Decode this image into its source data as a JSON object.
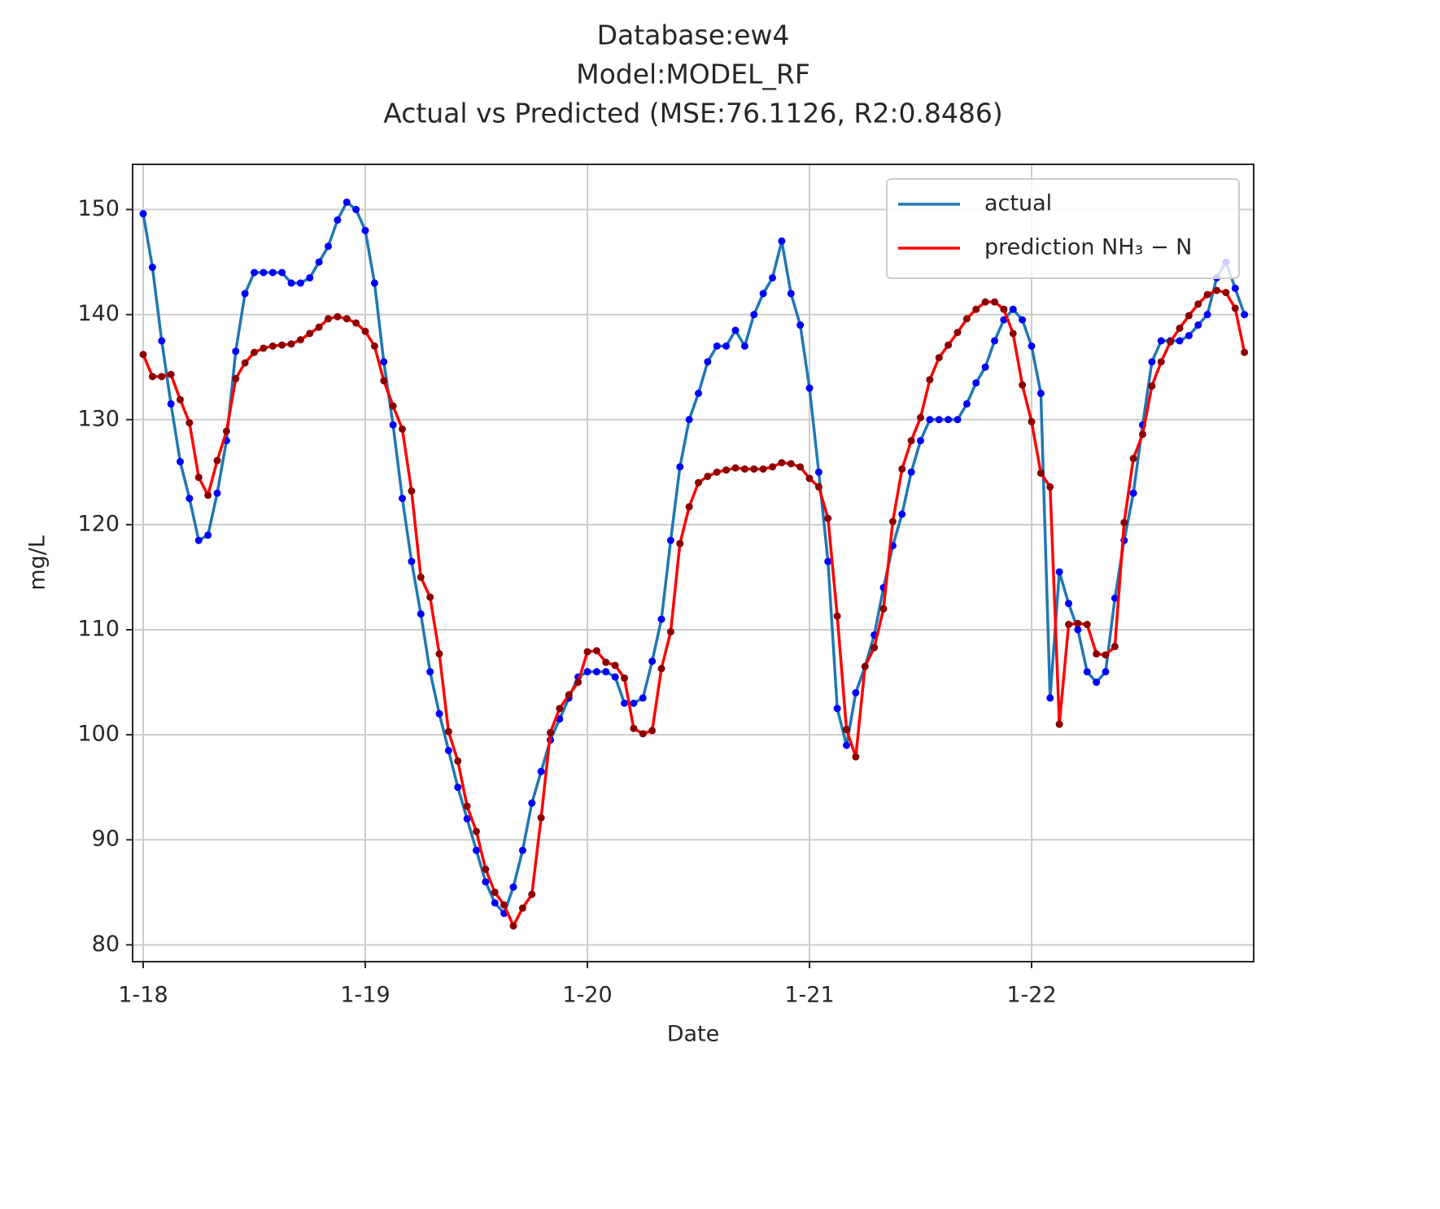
{
  "chart_data": {
    "type": "line",
    "title": [
      "Database:ew4",
      "Model:MODEL_RF",
      "Actual vs Predicted (MSE:76.1126, R2:0.8486)"
    ],
    "xlabel": "Date",
    "ylabel": "mg/L",
    "categories": [
      "1-18",
      null,
      null,
      null,
      null,
      null,
      null,
      null,
      null,
      null,
      null,
      null,
      null,
      null,
      null,
      null,
      null,
      null,
      null,
      null,
      null,
      null,
      null,
      null,
      "1-19",
      null,
      null,
      null,
      null,
      null,
      null,
      null,
      null,
      null,
      null,
      null,
      null,
      null,
      null,
      null,
      null,
      null,
      null,
      null,
      null,
      null,
      null,
      null,
      "1-20",
      null,
      null,
      null,
      null,
      null,
      null,
      null,
      null,
      null,
      null,
      null,
      null,
      null,
      null,
      null,
      null,
      null,
      null,
      null,
      null,
      null,
      null,
      null,
      "1-21",
      null,
      null,
      null,
      null,
      null,
      null,
      null,
      null,
      null,
      null,
      null,
      null,
      null,
      null,
      null,
      null,
      null,
      null,
      null,
      null,
      null,
      null,
      null,
      "1-22",
      null,
      null,
      null,
      null,
      null,
      null,
      null,
      null,
      null,
      null,
      null,
      null,
      null,
      null,
      null,
      null,
      null,
      null,
      null,
      null,
      null,
      null,
      null
    ],
    "series": [
      {
        "name": "actual",
        "color": "#1f77b4",
        "marker_color": "#0000ff",
        "values": [
          149.6,
          144.5,
          137.5,
          131.5,
          126,
          122.5,
          118.5,
          119,
          123,
          128,
          136.5,
          142,
          144,
          144,
          144,
          144,
          143,
          143,
          143.5,
          145,
          146.5,
          149,
          150.7,
          150,
          148,
          143,
          135.5,
          129.5,
          122.5,
          116.5,
          111.5,
          106,
          102,
          98.5,
          95,
          92,
          89,
          86,
          84,
          83,
          85.5,
          89,
          93.5,
          96.5,
          99.5,
          101.5,
          103.5,
          105.5,
          106,
          106,
          106,
          105.5,
          103,
          103,
          103.5,
          107,
          111,
          118.5,
          125.5,
          130,
          132.5,
          135.5,
          137,
          137,
          138.5,
          137,
          140,
          142,
          143.5,
          147,
          142,
          139,
          133,
          125,
          116.5,
          102.5,
          99,
          104,
          106.5,
          109.5,
          114,
          118,
          121,
          125,
          128,
          130,
          130,
          130,
          130,
          131.5,
          133.5,
          135,
          137.5,
          139.5,
          140.5,
          139.5,
          137,
          132.5,
          103.5,
          115.5,
          112.5,
          110,
          106,
          105,
          106,
          113,
          118.5,
          123,
          129.5,
          135.5,
          137.5,
          137.5,
          137.5,
          138,
          139,
          140,
          143.5,
          145,
          142.5,
          140
        ]
      },
      {
        "name": "prediction NH₃ − N",
        "color": "#ff0000",
        "marker_color": "#8b0000",
        "values": [
          136.2,
          134.1,
          134.1,
          134.3,
          131.9,
          129.7,
          124.5,
          122.8,
          126.1,
          128.9,
          133.9,
          135.4,
          136.4,
          136.8,
          137.0,
          137.1,
          137.2,
          137.6,
          138.2,
          138.8,
          139.6,
          139.8,
          139.6,
          139.2,
          138.4,
          137.0,
          133.7,
          131.3,
          129.1,
          123.2,
          115.0,
          113.1,
          107.7,
          100.3,
          97.5,
          93.2,
          90.8,
          87.2,
          85.0,
          83.8,
          81.8,
          83.5,
          84.8,
          92.1,
          100.2,
          102.5,
          103.8,
          105.0,
          107.9,
          108.0,
          106.9,
          106.6,
          105.4,
          100.6,
          100.1,
          100.4,
          106.3,
          109.8,
          118.2,
          121.7,
          124.0,
          124.6,
          125.0,
          125.2,
          125.4,
          125.3,
          125.3,
          125.3,
          125.5,
          125.9,
          125.8,
          125.5,
          124.4,
          123.6,
          120.6,
          111.3,
          100.5,
          97.9,
          106.5,
          108.3,
          112.0,
          120.3,
          125.3,
          128.0,
          130.2,
          133.8,
          135.9,
          137.1,
          138.3,
          139.6,
          140.5,
          141.2,
          141.2,
          140.5,
          138.2,
          133.3,
          129.8,
          124.9,
          123.6,
          101.0,
          110.5,
          110.6,
          110.5,
          107.7,
          107.6,
          108.4,
          120.2,
          126.3,
          128.6,
          133.2,
          135.5,
          137.4,
          138.7,
          139.9,
          141.0,
          141.9,
          142.3,
          142.1,
          140.6,
          136.4
        ]
      }
    ],
    "ylim": [
      78.4,
      154.3
    ],
    "yticks": [
      80,
      90,
      100,
      110,
      120,
      130,
      140,
      150
    ],
    "grid": true,
    "legend": "upper right"
  }
}
